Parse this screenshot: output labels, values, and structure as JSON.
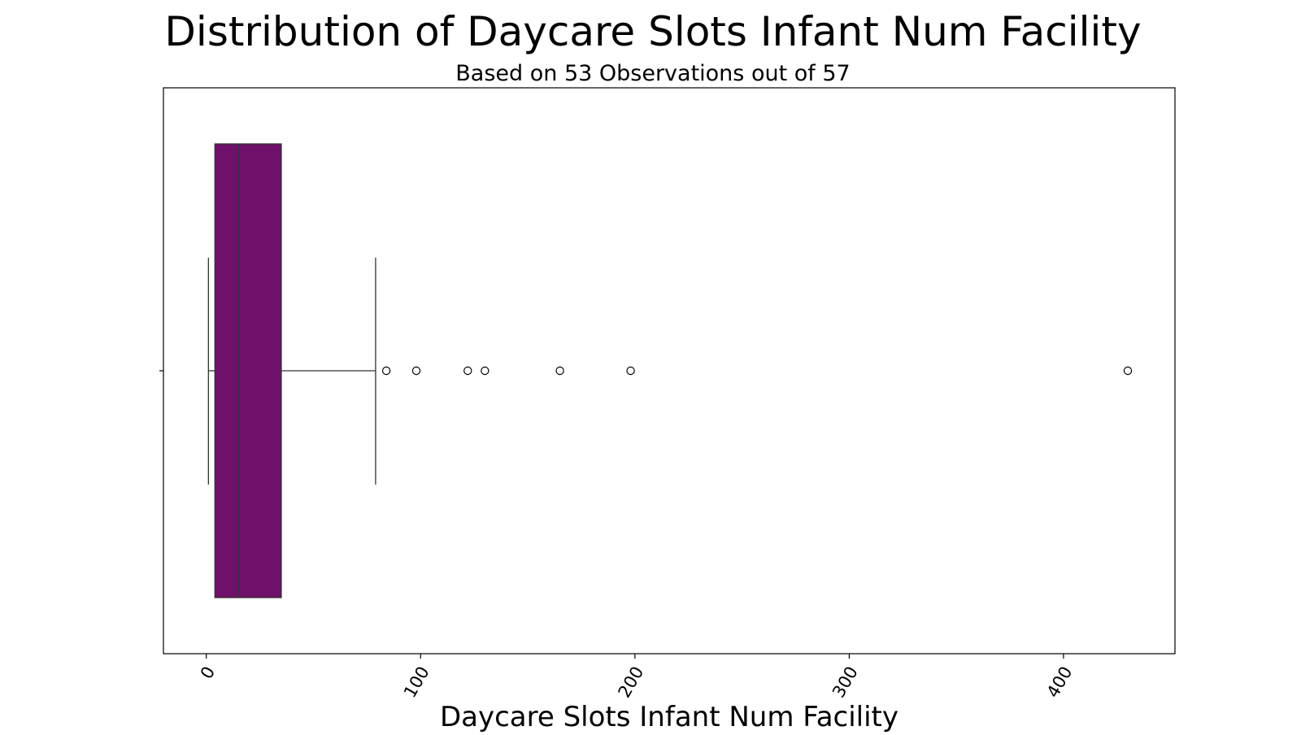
{
  "chart_data": {
    "type": "box",
    "orientation": "horizontal",
    "title": "Distribution of Daycare Slots Infant Num Facility",
    "subtitle": "Based on 53 Observations out of 57",
    "xlabel": "Daycare Slots Infant Num Facility",
    "ylabel": "",
    "xlim": [
      -20,
      452
    ],
    "xticks": [
      0,
      100,
      200,
      300,
      400
    ],
    "tick_labels": [
      "0",
      "100",
      "200",
      "300",
      "400"
    ],
    "tick_label_rotation_deg": 60,
    "grid": false,
    "legend": "none",
    "box": {
      "whisker_low": 1,
      "q1": 4,
      "median": 15,
      "q3": 35,
      "whisker_high": 79
    },
    "outliers": [
      84,
      98,
      122,
      130,
      165,
      198,
      430
    ],
    "colors": {
      "box_fill": "#6f116a",
      "line": "#333333",
      "outlier_face": "#ffffff",
      "outlier_edge": "#000000"
    }
  }
}
